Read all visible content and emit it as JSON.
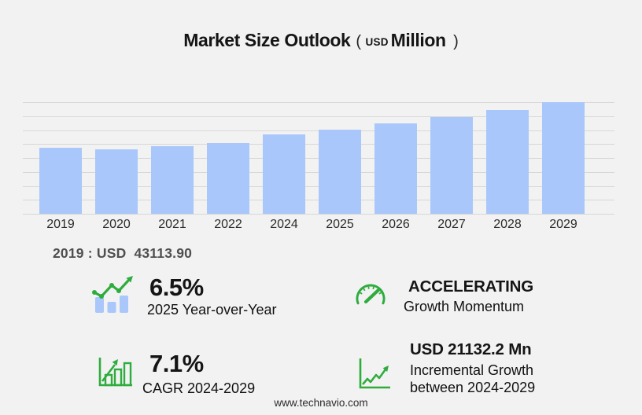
{
  "header": {
    "title": "Market Size Outlook",
    "paren_open": "(",
    "unit_currency": "USD",
    "unit_word": "Million",
    "paren_close": ")"
  },
  "chart_data": {
    "type": "bar",
    "title": "Market Size Outlook (USD Million)",
    "categories": [
      "2019",
      "2020",
      "2021",
      "2022",
      "2024",
      "2025",
      "2026",
      "2027",
      "2028",
      "2029"
    ],
    "values": [
      43113.9,
      42100,
      44100,
      46150,
      51594,
      54950,
      58840,
      62890,
      67460,
      72726
    ],
    "xlabel": "",
    "ylabel": "",
    "ylim": [
      0,
      72726
    ],
    "grid": "horizontal",
    "legend": "none",
    "notes": "y-axis unlabeled; 2019 value given as USD 43113.90; year 2023 not shown"
  },
  "annotation": {
    "base_year_prefix": "2019 : USD",
    "base_year_value": "43113.90"
  },
  "stats": [
    {
      "icon": "bar-chart-trend-icon",
      "value": "6.5%",
      "label": "2025 Year-over-Year"
    },
    {
      "icon": "speedometer-icon",
      "value": "ACCELERATING",
      "label": "Growth Momentum"
    },
    {
      "icon": "growth-bars-icon",
      "value": "7.1%",
      "label": "CAGR 2024-2029"
    },
    {
      "icon": "trend-axes-icon",
      "value": "USD 21132.2 Mn",
      "label": "Incremental Growth",
      "label2": "between 2024-2029"
    }
  ],
  "footer": {
    "url": "www.technavio.com"
  },
  "colors": {
    "background": "#f2f2f3",
    "bar": "#a9c7fa",
    "grid": "#d7d7d8",
    "green": "#2eac3d",
    "annotation_text": "#4f4f4f"
  }
}
